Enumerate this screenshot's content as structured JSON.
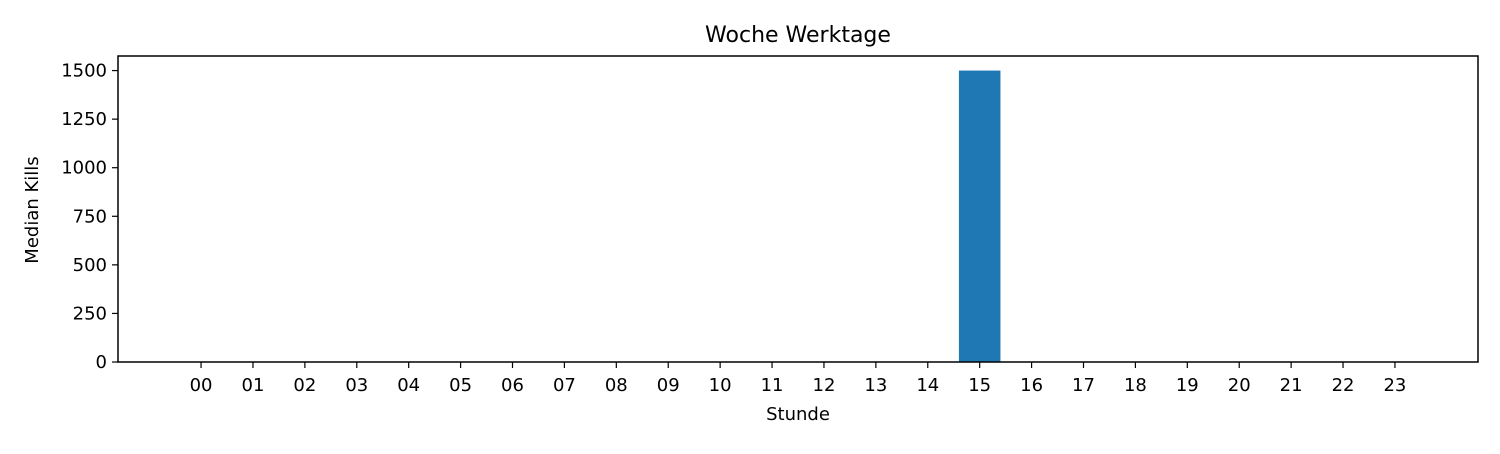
{
  "chart_data": {
    "type": "bar",
    "title": "Woche Werktage",
    "xlabel": "Stunde",
    "ylabel": "Median Kills",
    "categories": [
      "00",
      "01",
      "02",
      "03",
      "04",
      "05",
      "06",
      "07",
      "08",
      "09",
      "10",
      "11",
      "12",
      "13",
      "14",
      "15",
      "16",
      "17",
      "18",
      "19",
      "20",
      "21",
      "22",
      "23"
    ],
    "values": [
      0,
      0,
      0,
      0,
      0,
      0,
      0,
      0,
      0,
      0,
      0,
      0,
      0,
      0,
      0,
      1500,
      0,
      0,
      0,
      0,
      0,
      0,
      0,
      0
    ],
    "ylim": [
      0,
      1575
    ],
    "yticks": [
      0,
      250,
      500,
      750,
      1000,
      1250,
      1500
    ],
    "grid": false,
    "bar_color": "#1f77b4"
  }
}
